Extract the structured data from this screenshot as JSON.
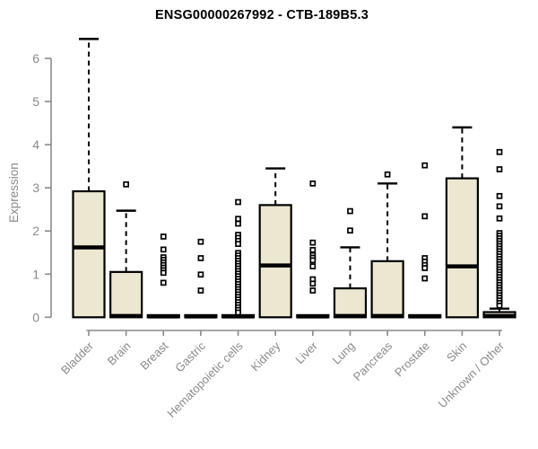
{
  "title": "ENSG00000267992 - CTB-189B5.3",
  "chart_data": {
    "type": "boxplot",
    "title": "ENSG00000267992 - CTB-189B5.3",
    "xlabel": "",
    "ylabel": "Expression",
    "ylim": [
      0,
      6.5
    ],
    "yticks": [
      0,
      1,
      2,
      3,
      4,
      5,
      6
    ],
    "grid": "off",
    "legend": "none",
    "categories": [
      "Bladder",
      "Brain",
      "Breast",
      "Gastric",
      "Hematopoietic cells",
      "Kidney",
      "Liver",
      "Lung",
      "Pancreas",
      "Prostate",
      "Skin",
      "Unknown / Other"
    ],
    "boxes": [
      {
        "category": "Bladder",
        "whisker_low": 0,
        "q1": 0,
        "median": 1.62,
        "q3": 2.92,
        "whisker_high": 6.45,
        "outliers": []
      },
      {
        "category": "Brain",
        "whisker_low": 0,
        "q1": 0,
        "median": 0.03,
        "q3": 1.05,
        "whisker_high": 2.47,
        "outliers": [
          3.08
        ]
      },
      {
        "category": "Breast",
        "whisker_low": 0,
        "q1": 0,
        "median": 0.02,
        "q3": 0.05,
        "whisker_high": 0.05,
        "outliers": [
          1.87,
          1.57,
          1.39,
          1.33,
          1.27,
          1.21,
          1.15,
          1.09,
          1.03,
          0.8
        ]
      },
      {
        "category": "Gastric",
        "whisker_low": 0,
        "q1": 0,
        "median": 0.02,
        "q3": 0.05,
        "whisker_high": 0.05,
        "outliers": [
          1.75,
          1.37,
          0.99,
          0.62
        ]
      },
      {
        "category": "Hematopoietic cells",
        "whisker_low": 0,
        "q1": 0,
        "median": 0.02,
        "q3": 0.05,
        "whisker_high": 0.05,
        "outliers": [
          2.67,
          2.28,
          2.17,
          1.91,
          1.84,
          1.77,
          1.7,
          1.49,
          1.43,
          1.37,
          1.31,
          1.25,
          1.19,
          1.13,
          1.07,
          1.01,
          0.95,
          0.89,
          0.83,
          0.77,
          0.71,
          0.65,
          0.59,
          0.53,
          0.47,
          0.41,
          0.35,
          0.29,
          0.23,
          0.17,
          0.11
        ]
      },
      {
        "category": "Kidney",
        "whisker_low": 0,
        "q1": 0,
        "median": 1.2,
        "q3": 2.6,
        "whisker_high": 3.45,
        "outliers": []
      },
      {
        "category": "Liver",
        "whisker_low": 0,
        "q1": 0,
        "median": 0.02,
        "q3": 0.05,
        "whisker_high": 0.05,
        "outliers": [
          3.1,
          1.73,
          1.56,
          1.44,
          1.38,
          1.32,
          1.18,
          0.88,
          0.78,
          0.62
        ]
      },
      {
        "category": "Lung",
        "whisker_low": 0,
        "q1": 0,
        "median": 0.03,
        "q3": 0.67,
        "whisker_high": 1.62,
        "outliers": [
          2.46,
          2.01
        ]
      },
      {
        "category": "Pancreas",
        "whisker_low": 0,
        "q1": 0,
        "median": 0.03,
        "q3": 1.3,
        "whisker_high": 3.1,
        "outliers": [
          3.31
        ]
      },
      {
        "category": "Prostate",
        "whisker_low": 0,
        "q1": 0,
        "median": 0.02,
        "q3": 0.05,
        "whisker_high": 0.05,
        "outliers": [
          3.52,
          2.34,
          1.37,
          1.29,
          1.21,
          1.14,
          0.9
        ]
      },
      {
        "category": "Skin",
        "whisker_low": 0,
        "q1": 0,
        "median": 1.18,
        "q3": 3.22,
        "whisker_high": 4.4,
        "outliers": []
      },
      {
        "category": "Unknown / Other",
        "whisker_low": 0,
        "q1": 0,
        "median": 0.03,
        "q3": 0.12,
        "whisker_high": 0.2,
        "outliers": [
          3.83,
          3.43,
          2.81,
          2.57,
          2.29,
          1.95,
          1.89,
          1.83,
          1.77,
          1.71,
          1.65,
          1.59,
          1.53,
          1.47,
          1.41,
          1.35,
          1.29,
          1.23,
          1.17,
          1.11,
          1.05,
          0.99,
          0.93,
          0.87,
          0.81,
          0.75,
          0.69,
          0.63,
          0.57,
          0.51,
          0.45,
          0.39,
          0.33,
          0.27
        ]
      }
    ],
    "style": {
      "box_fill": "#ece7d0",
      "box_stroke": "#000000",
      "median_color": "#000000",
      "whisker_color": "#000000",
      "outlier_stroke": "#000000",
      "outlier_fill": "#ffffff",
      "axis_color": "#8a8a8a",
      "label_color": "#8a8a8a",
      "title_color": "#000000",
      "background": "#ffffff"
    }
  }
}
